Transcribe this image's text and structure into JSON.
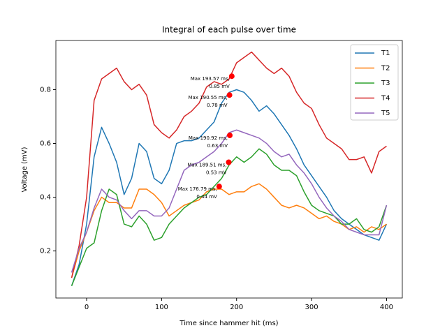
{
  "chart_data": {
    "type": "line",
    "title": "Integral of each pulse over time",
    "x_label": "Time since hammer hit (ms)",
    "y_label": "Voltage (mV)",
    "x": [
      -20,
      -10,
      0,
      10,
      20,
      30,
      40,
      50,
      60,
      70,
      80,
      90,
      100,
      110,
      120,
      130,
      140,
      150,
      160,
      170,
      180,
      190,
      200,
      210,
      220,
      230,
      240,
      250,
      260,
      270,
      280,
      290,
      300,
      310,
      320,
      330,
      340,
      350,
      360,
      370,
      380,
      390,
      400
    ],
    "series": [
      {
        "name": "T1",
        "color": "#1f77b4",
        "values": [
          0.07,
          0.15,
          0.3,
          0.55,
          0.66,
          0.6,
          0.53,
          0.41,
          0.47,
          0.6,
          0.57,
          0.47,
          0.45,
          0.5,
          0.6,
          0.61,
          0.61,
          0.62,
          0.65,
          0.68,
          0.75,
          0.79,
          0.8,
          0.79,
          0.76,
          0.72,
          0.74,
          0.71,
          0.67,
          0.63,
          0.58,
          0.52,
          0.48,
          0.44,
          0.4,
          0.35,
          0.32,
          0.3,
          0.28,
          0.26,
          0.25,
          0.24,
          0.3
        ]
      },
      {
        "name": "T2",
        "color": "#ff7f0e",
        "values": [
          0.1,
          0.2,
          0.27,
          0.35,
          0.4,
          0.38,
          0.38,
          0.36,
          0.36,
          0.43,
          0.43,
          0.41,
          0.38,
          0.33,
          0.35,
          0.37,
          0.38,
          0.39,
          0.42,
          0.43,
          0.43,
          0.41,
          0.42,
          0.42,
          0.44,
          0.45,
          0.43,
          0.4,
          0.37,
          0.36,
          0.37,
          0.36,
          0.34,
          0.32,
          0.33,
          0.31,
          0.3,
          0.28,
          0.29,
          0.27,
          0.29,
          0.28,
          0.3
        ]
      },
      {
        "name": "T3",
        "color": "#2ca02c",
        "values": [
          0.07,
          0.14,
          0.21,
          0.23,
          0.35,
          0.43,
          0.41,
          0.3,
          0.29,
          0.33,
          0.3,
          0.24,
          0.25,
          0.3,
          0.33,
          0.36,
          0.38,
          0.4,
          0.41,
          0.44,
          0.47,
          0.52,
          0.55,
          0.53,
          0.55,
          0.58,
          0.56,
          0.52,
          0.5,
          0.5,
          0.48,
          0.42,
          0.37,
          0.35,
          0.34,
          0.33,
          0.3,
          0.3,
          0.32,
          0.28,
          0.27,
          0.29,
          0.37
        ]
      },
      {
        "name": "T4",
        "color": "#d62728",
        "values": [
          0.1,
          0.22,
          0.4,
          0.76,
          0.84,
          0.86,
          0.88,
          0.83,
          0.8,
          0.82,
          0.78,
          0.67,
          0.64,
          0.62,
          0.65,
          0.7,
          0.72,
          0.75,
          0.81,
          0.83,
          0.82,
          0.84,
          0.9,
          0.92,
          0.94,
          0.91,
          0.88,
          0.86,
          0.88,
          0.85,
          0.79,
          0.75,
          0.73,
          0.67,
          0.62,
          0.6,
          0.58,
          0.54,
          0.54,
          0.55,
          0.49,
          0.57,
          0.59
        ]
      },
      {
        "name": "T5",
        "color": "#9467bd",
        "values": [
          0.12,
          0.21,
          0.27,
          0.36,
          0.43,
          0.4,
          0.39,
          0.35,
          0.32,
          0.35,
          0.35,
          0.33,
          0.33,
          0.36,
          0.43,
          0.5,
          0.52,
          0.53,
          0.55,
          0.57,
          0.6,
          0.64,
          0.65,
          0.64,
          0.63,
          0.62,
          0.6,
          0.57,
          0.55,
          0.56,
          0.52,
          0.49,
          0.45,
          0.4,
          0.36,
          0.33,
          0.31,
          0.28,
          0.27,
          0.26,
          0.26,
          0.26,
          0.37
        ]
      }
    ],
    "annotations": [
      {
        "x": 193.57,
        "y": 0.85,
        "color": "#ff0000",
        "text": [
          "Max 193.57 ms,",
          "0.85 mV"
        ]
      },
      {
        "x": 190.55,
        "y": 0.78,
        "color": "#ff0000",
        "text": [
          "Max 190.55 ms,",
          "0.78 mV"
        ]
      },
      {
        "x": 190.92,
        "y": 0.63,
        "color": "#ff0000",
        "text": [
          "Max 190.92 ms,",
          "0.63 mV"
        ]
      },
      {
        "x": 189.51,
        "y": 0.53,
        "color": "#ff0000",
        "text": [
          "Max 189.51 ms,",
          "0.53 mV"
        ]
      },
      {
        "x": 176.79,
        "y": 0.44,
        "color": "#ff0000",
        "text": [
          "Max 176.79 ms,",
          "0.44 mV"
        ]
      }
    ],
    "xlim": [
      -41,
      421
    ],
    "ylim": [
      0.025,
      0.983
    ],
    "xticks": [
      0,
      100,
      200,
      300,
      400
    ],
    "yticks": [
      0.2,
      0.4,
      0.6,
      0.8
    ],
    "legend": "upper right"
  }
}
